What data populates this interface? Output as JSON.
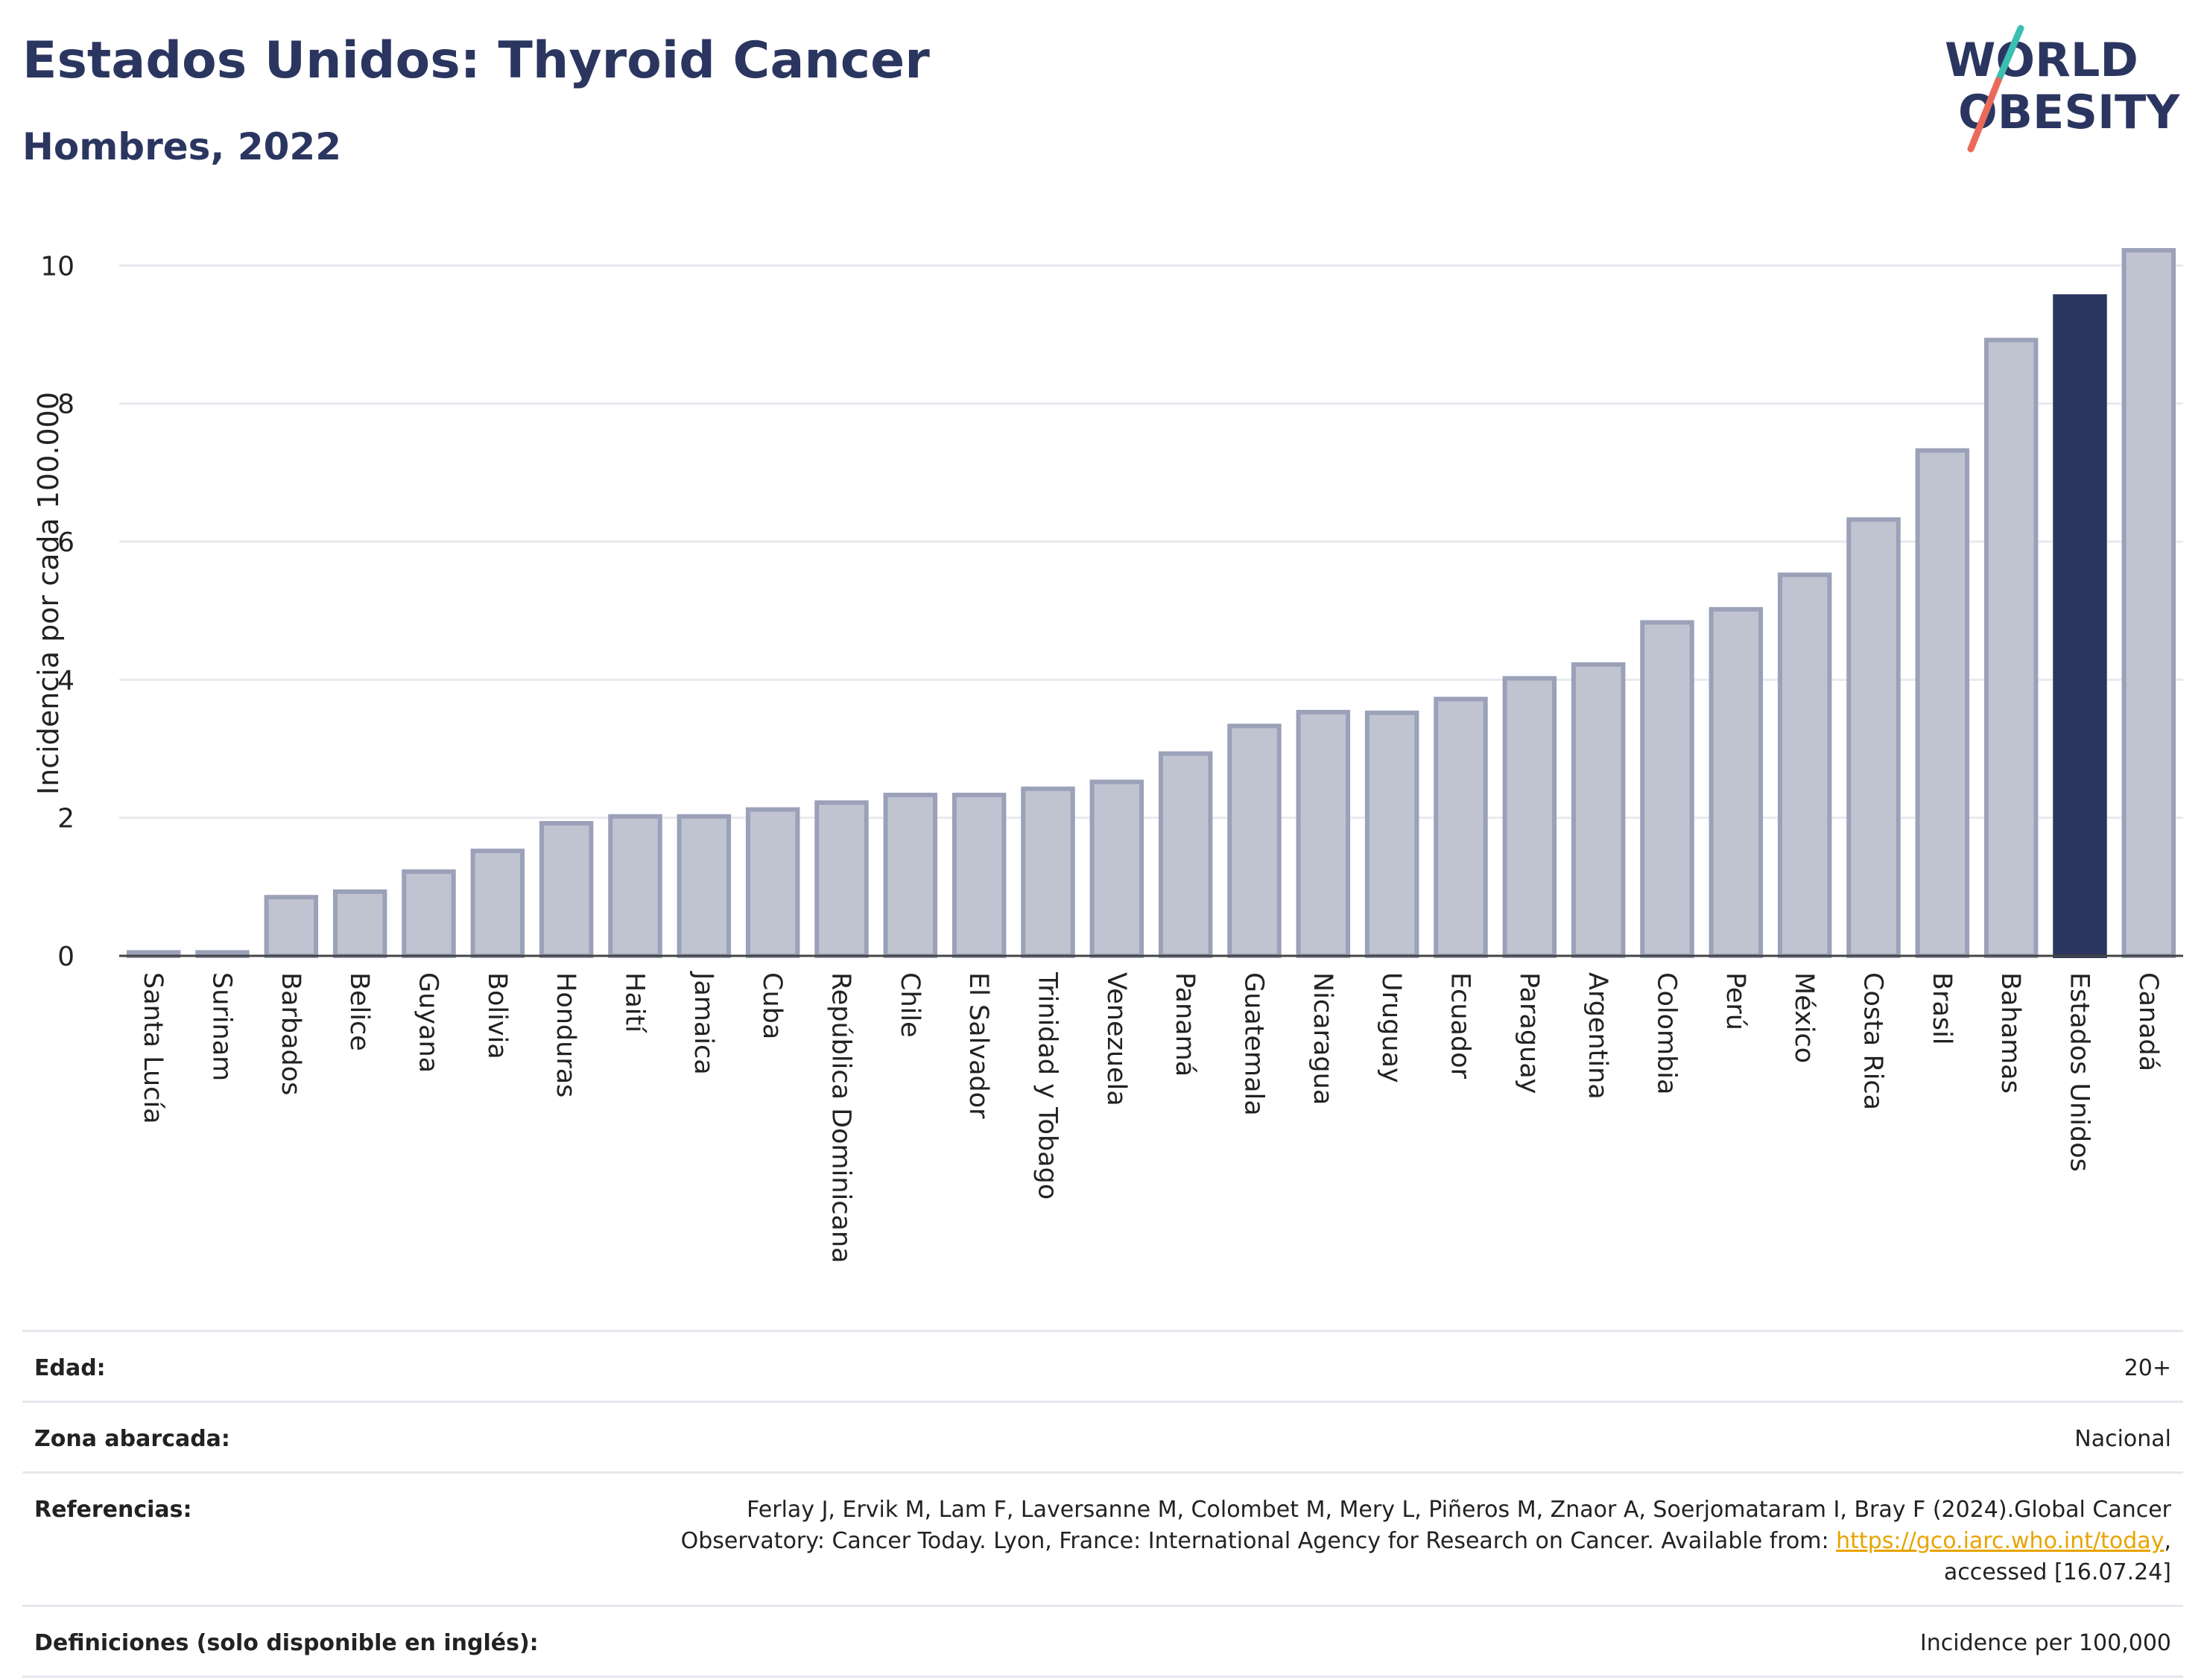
{
  "header": {
    "title": "Estados Unidos: Thyroid Cancer",
    "subtitle": "Hombres, 2022"
  },
  "logo": {
    "line1": "WORLD",
    "line2": "OBESITY",
    "accent_teal": "#3bbfb1",
    "accent_coral": "#ea6a5a",
    "text_color": "#2b3660"
  },
  "colors": {
    "bar": "#c0c4d1",
    "bar_border": "#9aa1b8",
    "highlight": "#2b3660",
    "grid": "#e8eaef"
  },
  "chart_data": {
    "type": "bar",
    "ylabel": "Incidencia por cada 100.000",
    "xlabel": "",
    "ylim": [
      0,
      10.5
    ],
    "yticks": [
      0,
      2,
      4,
      6,
      8,
      10
    ],
    "grid": true,
    "highlight": "Estados Unidos",
    "categories": [
      "Santa Lucía",
      "Surinam",
      "Barbados",
      "Belice",
      "Guyana",
      "Bolivia",
      "Honduras",
      "Haití",
      "Jamaica",
      "Cuba",
      "República Dominicana",
      "Chile",
      "El Salvador",
      "Trinidad y Tobago",
      "Venezuela",
      "Panamá",
      "Guatemala",
      "Nicaragua",
      "Uruguay",
      "Ecuador",
      "Paraguay",
      "Argentina",
      "Colombia",
      "Perú",
      "México",
      "Costa Rica",
      "Brasil",
      "Bahamas",
      "Estados Unidos",
      "Canadá"
    ],
    "values": [
      0.05,
      0.05,
      0.85,
      0.93,
      1.22,
      1.52,
      1.92,
      2.02,
      2.02,
      2.12,
      2.22,
      2.33,
      2.33,
      2.42,
      2.52,
      2.93,
      3.33,
      3.53,
      3.52,
      3.72,
      4.02,
      4.22,
      4.83,
      5.02,
      5.52,
      6.32,
      7.32,
      8.92,
      9.55,
      10.22
    ]
  },
  "meta": {
    "rows": [
      {
        "label": "Edad:",
        "value": "20+"
      },
      {
        "label": "Zona abarcada:",
        "value": "Nacional"
      },
      {
        "label": "Definiciones (solo disponible en inglés):",
        "value": "Incidence per 100,000"
      }
    ],
    "references": {
      "label": "Referencias:",
      "text_1": "Ferlay J, Ervik M, Lam F, Laversanne M, Colombet M, Mery L, Piñeros M, Znaor A, Soerjomataram I, Bray F (2024).Global Cancer",
      "text_2": "Observatory: Cancer Today. Lyon, France: International Agency for Research on Cancer. Available from: ",
      "link": "https://gco.iarc.who.int/today",
      "text_3": ",",
      "text_4": "accessed [16.07.24]"
    }
  }
}
